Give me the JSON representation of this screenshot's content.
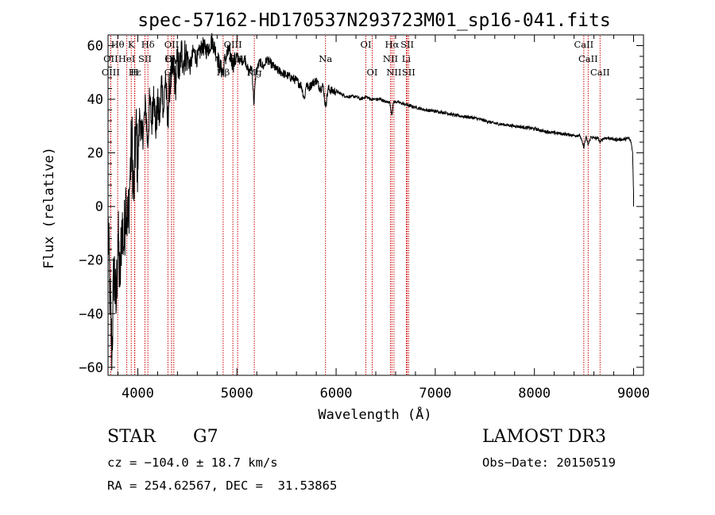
{
  "chart_data": {
    "type": "line",
    "title": "spec-57162-HD170537N293723M01_sp16-041.fits",
    "xlabel": "Wavelength (Å)",
    "ylabel": "Flux (relative)",
    "xlim": [
      3700,
      9100
    ],
    "ylim": [
      -63,
      64
    ],
    "xticks": [
      4000,
      5000,
      6000,
      7000,
      8000,
      9000
    ],
    "yticks": [
      -60,
      -40,
      -20,
      0,
      20,
      40,
      60
    ],
    "xtick_labels": [
      "4000",
      "5000",
      "6000",
      "7000",
      "8000",
      "9000"
    ],
    "ytick_labels": [
      "−60",
      "−40",
      "−20",
      "0",
      "20",
      "40",
      "60"
    ],
    "series": [
      {
        "name": "flux",
        "x": [
          3700,
          3720,
          3740,
          3760,
          3780,
          3800,
          3820,
          3840,
          3860,
          3880,
          3900,
          3920,
          3940,
          3960,
          3980,
          4000,
          4020,
          4040,
          4060,
          4080,
          4100,
          4120,
          4140,
          4160,
          4180,
          4200,
          4220,
          4240,
          4260,
          4280,
          4300,
          4320,
          4340,
          4360,
          4380,
          4400,
          4420,
          4440,
          4460,
          4480,
          4500,
          4530,
          4560,
          4600,
          4650,
          4700,
          4750,
          4800,
          4830,
          4861,
          4880,
          4920,
          4960,
          5000,
          5040,
          5080,
          5120,
          5150,
          5172,
          5190,
          5230,
          5270,
          5300,
          5350,
          5400,
          5450,
          5500,
          5550,
          5600,
          5650,
          5680,
          5700,
          5720,
          5760,
          5800,
          5840,
          5870,
          5893,
          5920,
          5960,
          6000,
          6050,
          6100,
          6150,
          6200,
          6250,
          6300,
          6350,
          6400,
          6450,
          6500,
          6540,
          6563,
          6580,
          6620,
          6700,
          6800,
          6900,
          7000,
          7100,
          7200,
          7300,
          7400,
          7500,
          7600,
          7700,
          7800,
          7900,
          8000,
          8100,
          8200,
          8300,
          8400,
          8460,
          8498,
          8520,
          8542,
          8570,
          8600,
          8640,
          8662,
          8700,
          8750,
          8800,
          8850,
          8900,
          8950,
          8975,
          8990,
          9000
        ],
        "values": [
          -5,
          -35,
          -55,
          -20,
          -40,
          -10,
          -30,
          -5,
          -15,
          5,
          -8,
          10,
          25,
          2,
          30,
          15,
          35,
          25,
          30,
          38,
          22,
          40,
          30,
          45,
          28,
          38,
          32,
          48,
          35,
          50,
          30,
          45,
          48,
          52,
          45,
          55,
          50,
          58,
          54,
          57,
          56,
          52,
          58,
          55,
          60,
          58,
          62,
          56,
          52,
          50,
          55,
          58,
          53,
          56,
          54,
          55,
          50,
          52,
          38,
          50,
          54,
          52,
          55,
          53,
          51,
          50,
          49,
          48,
          47,
          45,
          40,
          46,
          44,
          46,
          47,
          44,
          45,
          37,
          44,
          43,
          43,
          42,
          41,
          41,
          41,
          40,
          41,
          40,
          40,
          40,
          39,
          39,
          34,
          39,
          39,
          38,
          37,
          36,
          35.5,
          35,
          34,
          33.5,
          33,
          32,
          31,
          30.5,
          30,
          29.5,
          29,
          28,
          27.5,
          27,
          26.5,
          26.5,
          22,
          26,
          23,
          26,
          25.5,
          25.5,
          24,
          25.5,
          25.5,
          25,
          25,
          25,
          25.5,
          24,
          20,
          5
        ]
      }
    ],
    "lines": [
      {
        "label": "Hθ",
        "wl": 3797,
        "row": 0
      },
      {
        "label": "K",
        "wl": 3934,
        "row": 0
      },
      {
        "label": "Hδ",
        "wl": 4102,
        "row": 0
      },
      {
        "label": "OII",
        "wl": 4341,
        "row": 0
      },
      {
        "label": "OIII",
        "wl": 4959,
        "row": 0
      },
      {
        "label": "Mg",
        "wl": 5175,
        "row": 2
      },
      {
        "label": "Na",
        "wl": 5893,
        "row": 1
      },
      {
        "label": "OI",
        "wl": 6300,
        "row": 0
      },
      {
        "label": "OI",
        "wl": 6364,
        "row": 2
      },
      {
        "label": "Hα",
        "wl": 6563,
        "row": 0
      },
      {
        "label": "SII",
        "wl": 6717,
        "row": 0
      },
      {
        "label": "NII",
        "wl": 6548,
        "row": 1
      },
      {
        "label": "Li",
        "wl": 6708,
        "row": 1
      },
      {
        "label": "NII",
        "wl": 6583,
        "row": 2
      },
      {
        "label": "SII",
        "wl": 6731,
        "row": 2
      },
      {
        "label": "OII",
        "wl": 3727,
        "row": 1
      },
      {
        "label": "HeI",
        "wl": 3889,
        "row": 1
      },
      {
        "label": "SII",
        "wl": 4072,
        "row": 1
      },
      {
        "label": "Hγ",
        "wl": 4340,
        "row": 1
      },
      {
        "label": "OIII",
        "wl": 4363,
        "row": 1
      },
      {
        "label": "OIII",
        "wl": 5007,
        "row": 1
      },
      {
        "label": "OIII",
        "wl": 3727,
        "row": 2
      },
      {
        "label": "Hε",
        "wl": 3970,
        "row": 2
      },
      {
        "label": "H",
        "wl": 3968,
        "row": 2
      },
      {
        "label": "G",
        "wl": 4304,
        "row": 2
      },
      {
        "label": "Hβ",
        "wl": 4861,
        "row": 2
      },
      {
        "label": "CaII",
        "wl": 8498,
        "row": 0
      },
      {
        "label": "CaII",
        "wl": 8542,
        "row": 1
      },
      {
        "label": "CaII",
        "wl": 8662,
        "row": 2
      }
    ]
  },
  "info": {
    "type": "STAR",
    "subclass": "G7",
    "survey": "LAMOST DR3",
    "cz": "cz = −104.0 ± 18.7 km/s",
    "obs_date": "Obs−Date: 20150519",
    "coords": "RA = 254.62567, DEC =  31.53865"
  },
  "colors": {
    "line_marker": "#cc0000",
    "spectrum": "#000000"
  }
}
